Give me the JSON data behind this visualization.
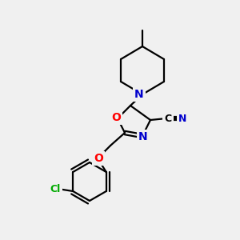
{
  "background_color": "#f0f0f0",
  "bond_color": "#000000",
  "atom_colors": {
    "N": "#0000cd",
    "O": "#ff0000",
    "Cl": "#00aa00",
    "C": "#000000"
  },
  "bg": "#f0f0f0"
}
